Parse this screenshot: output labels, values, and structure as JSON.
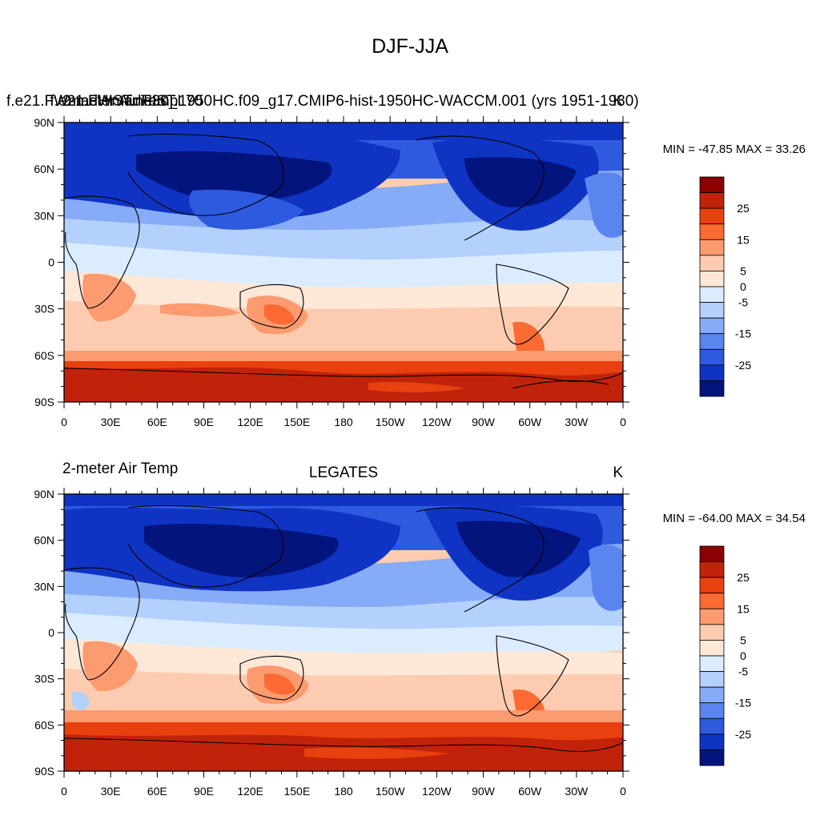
{
  "figure": {
    "title": "DJF-JJA"
  },
  "x_tick_labels": [
    "0",
    "30E",
    "60E",
    "90E",
    "120E",
    "150E",
    "180",
    "150W",
    "120W",
    "90W",
    "60W",
    "30W",
    "0"
  ],
  "y_tick_labels": [
    "90N",
    "60N",
    "30N",
    "0",
    "30S",
    "60S",
    "90S"
  ],
  "colorbar_labels": [
    "25",
    "15",
    "5",
    "0",
    "-5",
    "-15",
    "-25"
  ],
  "colorbar_colors": [
    "#8b0000",
    "#c1220a",
    "#e8410f",
    "#fa6a32",
    "#fc9a70",
    "#fdccb0",
    "#fde8d8",
    "#dcecff",
    "#b4d0fc",
    "#87acf7",
    "#5a84ee",
    "#2e5ae0",
    "#0f34c3",
    "#03147d"
  ],
  "panels": [
    {
      "left_title_a": "f.e21.FWmadHIST.ne30_L70",
      "left_title_b": "2-meter Air Temp",
      "center_title": "f.e21.FWmadHIST.1950HC.f09_g17.CMIP6-hist-1950HC-WACCM.001 (yrs 1951-1980)",
      "units": "K",
      "stats": "MIN = -47.85 MAX =  33.26"
    },
    {
      "left_title_a": "",
      "left_title_b": "2-meter Air Temp",
      "center_title": "LEGATES",
      "units": "K",
      "stats": "MIN = -64.00 MAX =  34.54"
    }
  ],
  "map_data": {
    "type": "filled_contour_map",
    "projection": "cylindrical_equidistant",
    "lon_range": [
      0,
      360
    ],
    "lat_range": [
      -90,
      90
    ],
    "contour_levels": [
      -30,
      -25,
      -20,
      -15,
      -10,
      -5,
      0,
      5,
      10,
      15,
      20,
      25,
      30
    ],
    "units": "K"
  }
}
